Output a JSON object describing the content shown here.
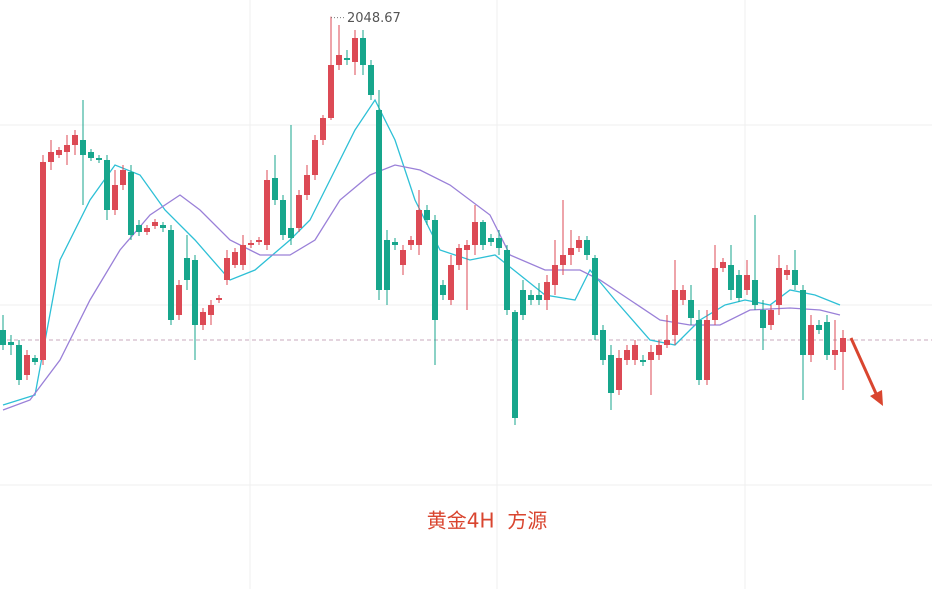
{
  "chart_data": {
    "type": "candlestick",
    "caption": "黄金4H  方源",
    "annotation": "2048.67",
    "annotation_index": 41,
    "up_color": "#dc4a55",
    "down_color": "#17a68c",
    "xlim": [
      -0.375,
      116.125
    ],
    "ylim": [
      1934.2,
      2052
    ],
    "yticks": [
      2027,
      1991,
      1955
    ],
    "xticks": [
      30.875,
      61.75,
      92.75
    ],
    "grid": true,
    "price_line": 1984,
    "open": [
      1986,
      1983.6,
      1983,
      1977,
      1980.4,
      1980,
      2019.6,
      2021,
      2021.6,
      2023,
      2024,
      2021.6,
      2020.4,
      2020,
      2010,
      2015,
      2017.6,
      2007,
      2005.6,
      2006.8,
      2007,
      2006,
      1989,
      2000.4,
      2000,
      1987,
      1989,
      1992,
      1996,
      1999,
      1999,
      2003,
      2003.6,
      2003,
      2016.4,
      2012,
      2006.4,
      2006.4,
      2013,
      2017,
      2024,
      2028.4,
      2039,
      2040.4,
      2039.6,
      2044.4,
      2039,
      2030,
      2004,
      2003.6,
      1999,
      2003,
      2003,
      2010,
      2008,
      1995,
      1992,
      1999,
      2002,
      2003,
      2007.6,
      2004.4,
      2004.4,
      2002,
      1989.6,
      1994,
      1993,
      1993,
      1992,
      1995,
      1999,
      2001,
      2002.4,
      2004,
      2000.4,
      1986,
      1981,
      1974,
      1980,
      1980,
      1980,
      1980,
      1981,
      1983,
      1985,
      1992,
      1992,
      1988,
      1976,
      1988,
      1998.4,
      1999,
      1997,
      1994,
      1996,
      1990,
      1987,
      1991,
      1997,
      1998,
      1994,
      1981,
      1987,
      1987.6,
      1981,
      1981.6
    ],
    "high": [
      1989,
      1985,
      1984,
      1982,
      1981,
      2021,
      2024,
      2022.6,
      2025,
      2026,
      2032,
      2022.2,
      2021,
      2021,
      2018,
      2019,
      2019,
      2008,
      2007,
      2008.2,
      2007.6,
      2007,
      1996,
      2005,
      2001,
      1990.4,
      1992,
      1993,
      2002,
      2002.4,
      2005,
      2004,
      2004.6,
      2018,
      2021,
      2013,
      2027,
      2014,
      2019,
      2025,
      2029,
      2048.67,
      2047,
      2042,
      2046,
      2046,
      2040,
      2034,
      2006,
      2004.4,
      2003,
      2004.8,
      2014,
      2011,
      2009,
      1996,
      2001,
      2003.2,
      2004,
      2011,
      2008,
      2005.2,
      2006,
      2003,
      1990,
      1996,
      1994,
      1995.4,
      1997,
      2004,
      2012,
      2006,
      2004.8,
      2004.8,
      2001,
      1987,
      1983,
      1982,
      1983,
      1984,
      1981,
      1983,
      1984,
      1989,
      2000,
      1995,
      1995,
      1990,
      1990,
      2003,
      2000.4,
      2003,
      1998,
      2000,
      2009,
      1992,
      1991,
      2001,
      1999,
      2002,
      1995,
      1989,
      1988,
      1989,
      1988,
      1986
    ],
    "low": [
      1982,
      1981,
      1975,
      1976,
      1979,
      1979,
      2018,
      2020.4,
      2019,
      2021,
      2011,
      2019.8,
      2019.4,
      2008,
      2009,
      2014,
      2004,
      2004.8,
      2005,
      2006.2,
      2005.6,
      1987,
      1988,
      1994,
      1980,
      1986,
      1987,
      1991.4,
      1995,
      1998.4,
      1998,
      2002.4,
      2003,
      2002,
      2011,
      2004,
      2003,
      2005.6,
      2012,
      2016,
      2023,
      2028,
      2038,
      2039,
      2037,
      2037,
      2032,
      1992,
      1991,
      2002,
      1997,
      2002,
      2001,
      2007,
      1979,
      1992,
      1991,
      1998,
      1990,
      2001,
      2002,
      2002.8,
      2001,
      1989,
      1967,
      1988,
      1991,
      1991,
      1990,
      1993,
      1997,
      1999,
      2001.6,
      2000,
      1984,
      1979,
      1970,
      1973,
      1979,
      1979,
      1978.8,
      1973,
      1980,
      1982.4,
      1983,
      1991,
      1987,
      1975,
      1975,
      1987,
      1997.6,
      1992,
      1991.6,
      1993,
      1990,
      1982,
      1986,
      1989,
      1996,
      1994,
      1972,
      1979.6,
      1985.2,
      1980,
      1978,
      1974
    ],
    "close": [
      1983,
      1983,
      1976,
      1981,
      1979.6,
      2019.6,
      2021.6,
      2022,
      2023,
      2025,
      2021,
      2020.4,
      2020,
      2010,
      2015,
      2018,
      2005,
      2005.6,
      2006.4,
      2007.6,
      2006.4,
      1988,
      1995,
      1996,
      1987,
      1989.6,
      1991,
      1992.4,
      2000.4,
      2001.6,
      2003,
      2003.4,
      2004,
      2016,
      2012,
      2005,
      2004.4,
      2013,
      2017,
      2024,
      2028.4,
      2039,
      2041,
      2040,
      2044.4,
      2039,
      2033,
      1994,
      1994,
      2003,
      2002,
      2004,
      2010,
      2008,
      1988,
      1993,
      1999,
      2002.4,
      2003,
      2007.6,
      2003,
      2003.6,
      2002.4,
      1990,
      1968.4,
      1989,
      1992,
      1992,
      1995.6,
      1999,
      2001,
      2002.4,
      2004,
      2001,
      1985,
      1980,
      1973.4,
      1980.4,
      1982,
      1983,
      1979.6,
      1981.6,
      1983,
      1984,
      1994,
      1994,
      1988.4,
      1976,
      1988,
      1998.4,
      1999.6,
      1994,
      1992.4,
      1997,
      1991,
      1986.4,
      1990,
      1998.4,
      1998,
      1995,
      1981,
      1987,
      1986,
      1981,
      1982,
      1984.4
    ],
    "lines": [
      {
        "color": "#2ec0d6",
        "x": [
          0,
          4,
          7.125,
          10.875,
          14,
          17.125,
          20.25,
          24,
          28.375,
          31.5,
          35.875,
          38.375,
          40.875,
          44,
          46.5,
          49,
          51.5,
          54.625,
          58.375,
          61.5,
          64.625,
          67.75,
          71.5,
          73.375,
          76.5,
          80.875,
          84,
          87.125,
          90.25,
          92.75,
          95.875,
          98.375,
          101.5,
          104.625
        ],
        "values": [
          1971,
          1973,
          2000,
          2012,
          2019,
          2017,
          2010,
          2004,
          1996,
          1998,
          2004,
          2008,
          2016,
          2026,
          2032,
          2024,
          2012,
          2002,
          2000,
          2001,
          1997,
          1993,
          1992,
          1998,
          1992,
          1984,
          1983,
          1988,
          1991,
          1992,
          1991,
          1994,
          1993,
          1991
        ]
      },
      {
        "color": "#9a80d8",
        "x": [
          0,
          3.375,
          7.125,
          10.875,
          14.625,
          18.375,
          22.125,
          24.625,
          28.375,
          32.125,
          35.875,
          39,
          42.125,
          45.875,
          49,
          52.125,
          55.875,
          60.875,
          63.375,
          67.75,
          72.125,
          74.625,
          78.375,
          82.125,
          85.875,
          89.625,
          93.375,
          98.375,
          102.125,
          104.625
        ],
        "values": [
          1970,
          1972,
          1980,
          1992,
          2002,
          2009,
          2013,
          2010,
          2004,
          2001,
          2001,
          2004,
          2012,
          2017,
          2019,
          2018,
          2015,
          2009,
          2001,
          1998,
          1998,
          1996,
          1992,
          1988,
          1987,
          1987,
          1990,
          1990.4,
          1990,
          1989
        ]
      }
    ]
  }
}
